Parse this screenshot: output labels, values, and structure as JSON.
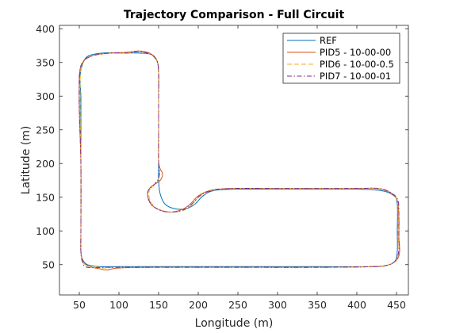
{
  "chart_data": {
    "type": "line",
    "title": "Trajectory Comparison - Full Circuit",
    "xlabel": "Longitude (m)",
    "ylabel": "Latitude (m)",
    "xlim": [
      25,
      465
    ],
    "ylim": [
      5,
      405
    ],
    "xticks": [
      50,
      100,
      150,
      200,
      250,
      300,
      350,
      400,
      450
    ],
    "yticks": [
      50,
      100,
      150,
      200,
      250,
      300,
      350,
      400
    ],
    "grid": false,
    "legend_position": "top-right",
    "series": [
      {
        "name": "REF",
        "color": "#0072BD",
        "dash": "solid",
        "points": [
          [
            52,
            300
          ],
          [
            51,
            330
          ],
          [
            55,
            350
          ],
          [
            62,
            360
          ],
          [
            80,
            364
          ],
          [
            105,
            364
          ],
          [
            125,
            364
          ],
          [
            140,
            362
          ],
          [
            148,
            352
          ],
          [
            150,
            335
          ],
          [
            150,
            300
          ],
          [
            150,
            250
          ],
          [
            150,
            200
          ],
          [
            150,
            175
          ],
          [
            152,
            155
          ],
          [
            158,
            140
          ],
          [
            170,
            133
          ],
          [
            185,
            133
          ],
          [
            196,
            140
          ],
          [
            206,
            152
          ],
          [
            220,
            160
          ],
          [
            250,
            162
          ],
          [
            300,
            162
          ],
          [
            350,
            162
          ],
          [
            400,
            162
          ],
          [
            430,
            160
          ],
          [
            446,
            153
          ],
          [
            451,
            140
          ],
          [
            451,
            100
          ],
          [
            451,
            70
          ],
          [
            448,
            55
          ],
          [
            438,
            49
          ],
          [
            420,
            47
          ],
          [
            350,
            47
          ],
          [
            300,
            47
          ],
          [
            250,
            47
          ],
          [
            200,
            47
          ],
          [
            150,
            47
          ],
          [
            100,
            47
          ],
          [
            75,
            47
          ],
          [
            60,
            50
          ],
          [
            54,
            58
          ],
          [
            52,
            70
          ],
          [
            52,
            100
          ],
          [
            52,
            200
          ],
          [
            52,
            300
          ]
        ]
      },
      {
        "name": "PID5 - 10-00-00",
        "color": "#D95319",
        "dash": "solid",
        "points": [
          [
            50,
            330
          ],
          [
            52,
            345
          ],
          [
            58,
            355
          ],
          [
            70,
            361
          ],
          [
            90,
            364
          ],
          [
            110,
            365
          ],
          [
            125,
            367
          ],
          [
            140,
            363
          ],
          [
            148,
            353
          ],
          [
            150,
            335
          ],
          [
            150,
            300
          ],
          [
            150,
            250
          ],
          [
            150,
            205
          ],
          [
            152,
            192
          ],
          [
            155,
            185
          ],
          [
            152,
            175
          ],
          [
            140,
            165
          ],
          [
            136,
            155
          ],
          [
            140,
            140
          ],
          [
            150,
            132
          ],
          [
            165,
            128
          ],
          [
            180,
            132
          ],
          [
            190,
            140
          ],
          [
            200,
            152
          ],
          [
            215,
            160
          ],
          [
            240,
            163
          ],
          [
            300,
            163
          ],
          [
            350,
            163
          ],
          [
            400,
            163
          ],
          [
            425,
            163
          ],
          [
            442,
            157
          ],
          [
            451,
            145
          ],
          [
            453,
            120
          ],
          [
            453,
            90
          ],
          [
            454,
            70
          ],
          [
            451,
            58
          ],
          [
            441,
            50
          ],
          [
            420,
            47
          ],
          [
            350,
            46
          ],
          [
            250,
            46
          ],
          [
            150,
            46
          ],
          [
            100,
            45
          ],
          [
            85,
            42
          ],
          [
            75,
            44
          ],
          [
            63,
            47
          ],
          [
            55,
            54
          ],
          [
            52,
            70
          ],
          [
            52,
            100
          ],
          [
            52,
            200
          ],
          [
            50,
            280
          ],
          [
            50,
            330
          ]
        ]
      },
      {
        "name": "PID6 - 10-00-0.5",
        "color": "#EDB120",
        "dash": "dashed",
        "points": [
          [
            51,
            325
          ],
          [
            53,
            345
          ],
          [
            58,
            355
          ],
          [
            70,
            361
          ],
          [
            90,
            364
          ],
          [
            110,
            364
          ],
          [
            125,
            366
          ],
          [
            140,
            362
          ],
          [
            148,
            352
          ],
          [
            150,
            335
          ],
          [
            150,
            300
          ],
          [
            150,
            250
          ],
          [
            150,
            205
          ],
          [
            151,
            192
          ],
          [
            151,
            180
          ],
          [
            146,
            170
          ],
          [
            139,
            162
          ],
          [
            138,
            150
          ],
          [
            143,
            138
          ],
          [
            153,
            130
          ],
          [
            168,
            128
          ],
          [
            182,
            131
          ],
          [
            193,
            140
          ],
          [
            202,
            152
          ],
          [
            217,
            160
          ],
          [
            245,
            163
          ],
          [
            300,
            163
          ],
          [
            350,
            163
          ],
          [
            400,
            163
          ],
          [
            428,
            163
          ],
          [
            444,
            156
          ],
          [
            451,
            145
          ],
          [
            452,
            120
          ],
          [
            452,
            90
          ],
          [
            453,
            72
          ],
          [
            450,
            58
          ],
          [
            441,
            50
          ],
          [
            420,
            47
          ],
          [
            350,
            46
          ],
          [
            250,
            46
          ],
          [
            150,
            46
          ],
          [
            100,
            46
          ],
          [
            80,
            45
          ],
          [
            70,
            47
          ],
          [
            60,
            48
          ],
          [
            54,
            55
          ],
          [
            52,
            70
          ],
          [
            52,
            100
          ],
          [
            52,
            200
          ],
          [
            51,
            280
          ],
          [
            51,
            325
          ]
        ]
      },
      {
        "name": "PID7 - 10-00-01",
        "color": "#7E2F8E",
        "dash": "dashdot",
        "points": [
          [
            50,
            328
          ],
          [
            52,
            345
          ],
          [
            58,
            355
          ],
          [
            70,
            361
          ],
          [
            90,
            364
          ],
          [
            110,
            364
          ],
          [
            125,
            366
          ],
          [
            140,
            362
          ],
          [
            148,
            352
          ],
          [
            150,
            335
          ],
          [
            150,
            300
          ],
          [
            150,
            250
          ],
          [
            150,
            205
          ],
          [
            151,
            190
          ],
          [
            150,
            178
          ],
          [
            144,
            168
          ],
          [
            137,
            160
          ],
          [
            137,
            148
          ],
          [
            143,
            137
          ],
          [
            153,
            130
          ],
          [
            167,
            128
          ],
          [
            181,
            131
          ],
          [
            192,
            140
          ],
          [
            202,
            152
          ],
          [
            217,
            160
          ],
          [
            245,
            163
          ],
          [
            300,
            163
          ],
          [
            350,
            163
          ],
          [
            400,
            163
          ],
          [
            428,
            163
          ],
          [
            444,
            156
          ],
          [
            452,
            145
          ],
          [
            453,
            120
          ],
          [
            453,
            90
          ],
          [
            453,
            72
          ],
          [
            450,
            58
          ],
          [
            441,
            50
          ],
          [
            420,
            47
          ],
          [
            350,
            46
          ],
          [
            250,
            46
          ],
          [
            150,
            46
          ],
          [
            100,
            46
          ],
          [
            85,
            46
          ],
          [
            60,
            46
          ],
          [
            54,
            54
          ],
          [
            52,
            70
          ],
          [
            52,
            100
          ],
          [
            52,
            200
          ],
          [
            50,
            280
          ],
          [
            50,
            328
          ]
        ]
      }
    ]
  }
}
